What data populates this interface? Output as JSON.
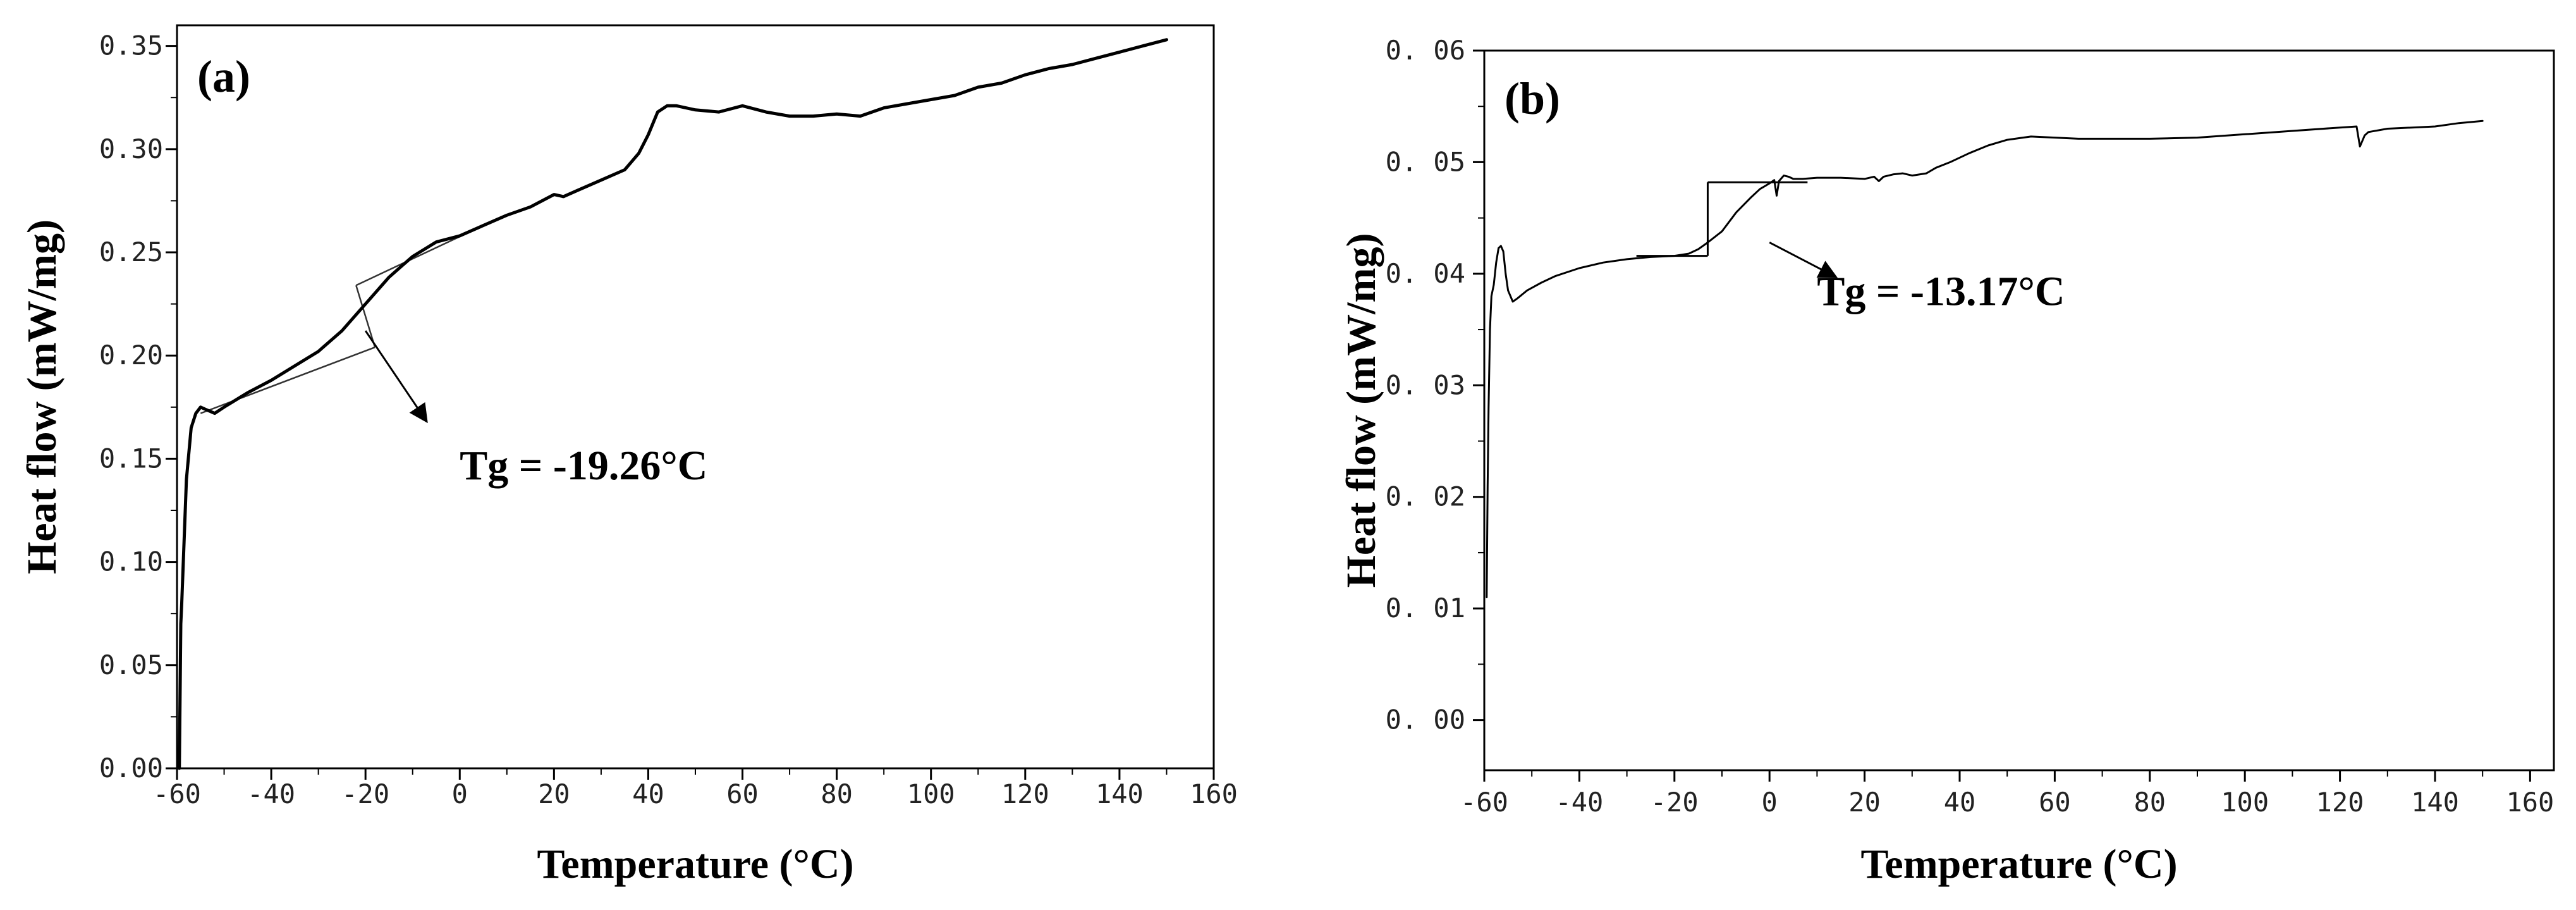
{
  "chart_data": [
    {
      "type": "line",
      "panel_label": "(a)",
      "xlabel": "Temperature (°C)",
      "ylabel": "Heat flow (mW/mg)",
      "xlim": [
        -60,
        160
      ],
      "ylim": [
        0.0,
        0.36
      ],
      "xticks": [
        -60,
        -40,
        -20,
        0,
        20,
        40,
        60,
        80,
        100,
        120,
        140,
        160
      ],
      "yticks": [
        0.0,
        0.05,
        0.1,
        0.15,
        0.2,
        0.25,
        0.3,
        0.35
      ],
      "ytick_labels": [
        "0.00",
        "0.05",
        "0.10",
        "0.15",
        "0.20",
        "0.25",
        "0.30",
        "0.35"
      ],
      "series": [
        {
          "name": "Heat flow",
          "x": [
            -59.5,
            -59.2,
            -59,
            -58.5,
            -58,
            -57,
            -56,
            -55,
            -54,
            -52,
            -50,
            -45,
            -40,
            -35,
            -30,
            -25,
            -20,
            -15,
            -10,
            -5,
            0,
            5,
            10,
            15,
            20,
            22,
            25,
            30,
            35,
            38,
            40,
            42,
            44,
            46,
            50,
            55,
            60,
            65,
            70,
            75,
            80,
            85,
            90,
            95,
            100,
            105,
            110,
            115,
            120,
            125,
            130,
            135,
            140,
            145,
            150
          ],
          "y": [
            0.0,
            0.07,
            0.08,
            0.11,
            0.14,
            0.165,
            0.172,
            0.175,
            0.174,
            0.172,
            0.175,
            0.182,
            0.188,
            0.195,
            0.202,
            0.212,
            0.225,
            0.238,
            0.248,
            0.255,
            0.258,
            0.263,
            0.268,
            0.272,
            0.278,
            0.277,
            0.28,
            0.285,
            0.29,
            0.298,
            0.307,
            0.318,
            0.321,
            0.321,
            0.319,
            0.318,
            0.321,
            0.318,
            0.316,
            0.316,
            0.317,
            0.316,
            0.32,
            0.322,
            0.324,
            0.326,
            0.33,
            0.332,
            0.336,
            0.339,
            0.341,
            0.344,
            0.347,
            0.35,
            0.353
          ]
        }
      ],
      "tangent_lines": [
        {
          "x": [
            -55,
            -18
          ],
          "y": [
            0.172,
            0.204
          ]
        },
        {
          "x": [
            -18,
            -22
          ],
          "y": [
            0.204,
            0.234
          ]
        },
        {
          "x": [
            -22,
            5
          ],
          "y": [
            0.234,
            0.263
          ]
        }
      ],
      "annotation": {
        "text": "Tg = -19.26°C",
        "arrow_from": [
          -20,
          0.212
        ],
        "arrow_to": [
          -7,
          0.168
        ],
        "text_at": [
          0,
          0.14
        ]
      }
    },
    {
      "type": "line",
      "panel_label": "(b)",
      "xlabel": "Temperature (°C)",
      "ylabel": "Heat flow (mW/mg)",
      "xlim": [
        -60,
        165
      ],
      "ylim": [
        -0.0045,
        0.06
      ],
      "xticks": [
        -60,
        -40,
        -20,
        0,
        20,
        40,
        60,
        80,
        100,
        120,
        140,
        160
      ],
      "yticks": [
        0.0,
        0.01,
        0.02,
        0.03,
        0.04,
        0.05,
        0.06
      ],
      "ytick_labels": [
        "0. 00",
        "0. 01",
        "0. 02",
        "0. 03",
        "0. 04",
        "0. 05",
        "0. 06"
      ],
      "series": [
        {
          "name": "Heat flow",
          "x": [
            -59.5,
            -59.3,
            -59.1,
            -58.8,
            -58.5,
            -58.0,
            -57.5,
            -57.0,
            -56.5,
            -56.0,
            -55.5,
            -55.0,
            -54.0,
            -53.0,
            -51.0,
            -48.0,
            -45.0,
            -40.0,
            -35.0,
            -30.0,
            -25.0,
            -20.0,
            -17.0,
            -15.0,
            -13.0,
            -10.0,
            -7.0,
            -4.0,
            -2.0,
            0.0,
            1.0,
            1.5,
            2.0,
            3.0,
            4.0,
            5.0,
            7.0,
            10.0,
            15.0,
            20.0,
            22.0,
            23.0,
            24.0,
            26.0,
            28.0,
            30.0,
            33.0,
            35.0,
            38.0,
            42.0,
            46.0,
            50.0,
            55.0,
            60.0,
            65.0,
            70.0,
            80.0,
            90.0,
            100.0,
            110.0,
            120.0,
            123.5,
            124.2,
            124.6,
            125.2,
            126.0,
            130.0,
            140.0,
            145.0,
            150.0
          ],
          "y": [
            0.011,
            0.021,
            0.028,
            0.035,
            0.038,
            0.039,
            0.041,
            0.0423,
            0.0425,
            0.042,
            0.04,
            0.0385,
            0.0375,
            0.0378,
            0.0385,
            0.0392,
            0.0398,
            0.0405,
            0.041,
            0.0413,
            0.0415,
            0.0416,
            0.0418,
            0.0422,
            0.0428,
            0.0438,
            0.0455,
            0.0468,
            0.0476,
            0.0481,
            0.0484,
            0.047,
            0.0483,
            0.0488,
            0.0487,
            0.0485,
            0.0485,
            0.0486,
            0.0486,
            0.0485,
            0.0487,
            0.0483,
            0.0487,
            0.0489,
            0.049,
            0.0488,
            0.049,
            0.0495,
            0.05,
            0.0508,
            0.0515,
            0.052,
            0.0523,
            0.0522,
            0.0521,
            0.0521,
            0.0521,
            0.0522,
            0.0525,
            0.0528,
            0.0531,
            0.0532,
            0.0514,
            0.0518,
            0.0524,
            0.0527,
            0.053,
            0.0532,
            0.0535,
            0.0537
          ]
        }
      ],
      "tangent_lines": [
        {
          "x": [
            -28,
            -13
          ],
          "y": [
            0.0416,
            0.0416
          ]
        },
        {
          "x": [
            -13,
            -13
          ],
          "y": [
            0.0416,
            0.0482
          ]
        },
        {
          "x": [
            -13,
            8
          ],
          "y": [
            0.0482,
            0.0482
          ]
        }
      ],
      "annotation": {
        "text": "Tg = -13.17°C",
        "arrow_from": [
          0,
          0.0428
        ],
        "arrow_to": [
          14,
          0.0397
        ],
        "text_at": [
          10,
          0.0372
        ]
      }
    }
  ]
}
